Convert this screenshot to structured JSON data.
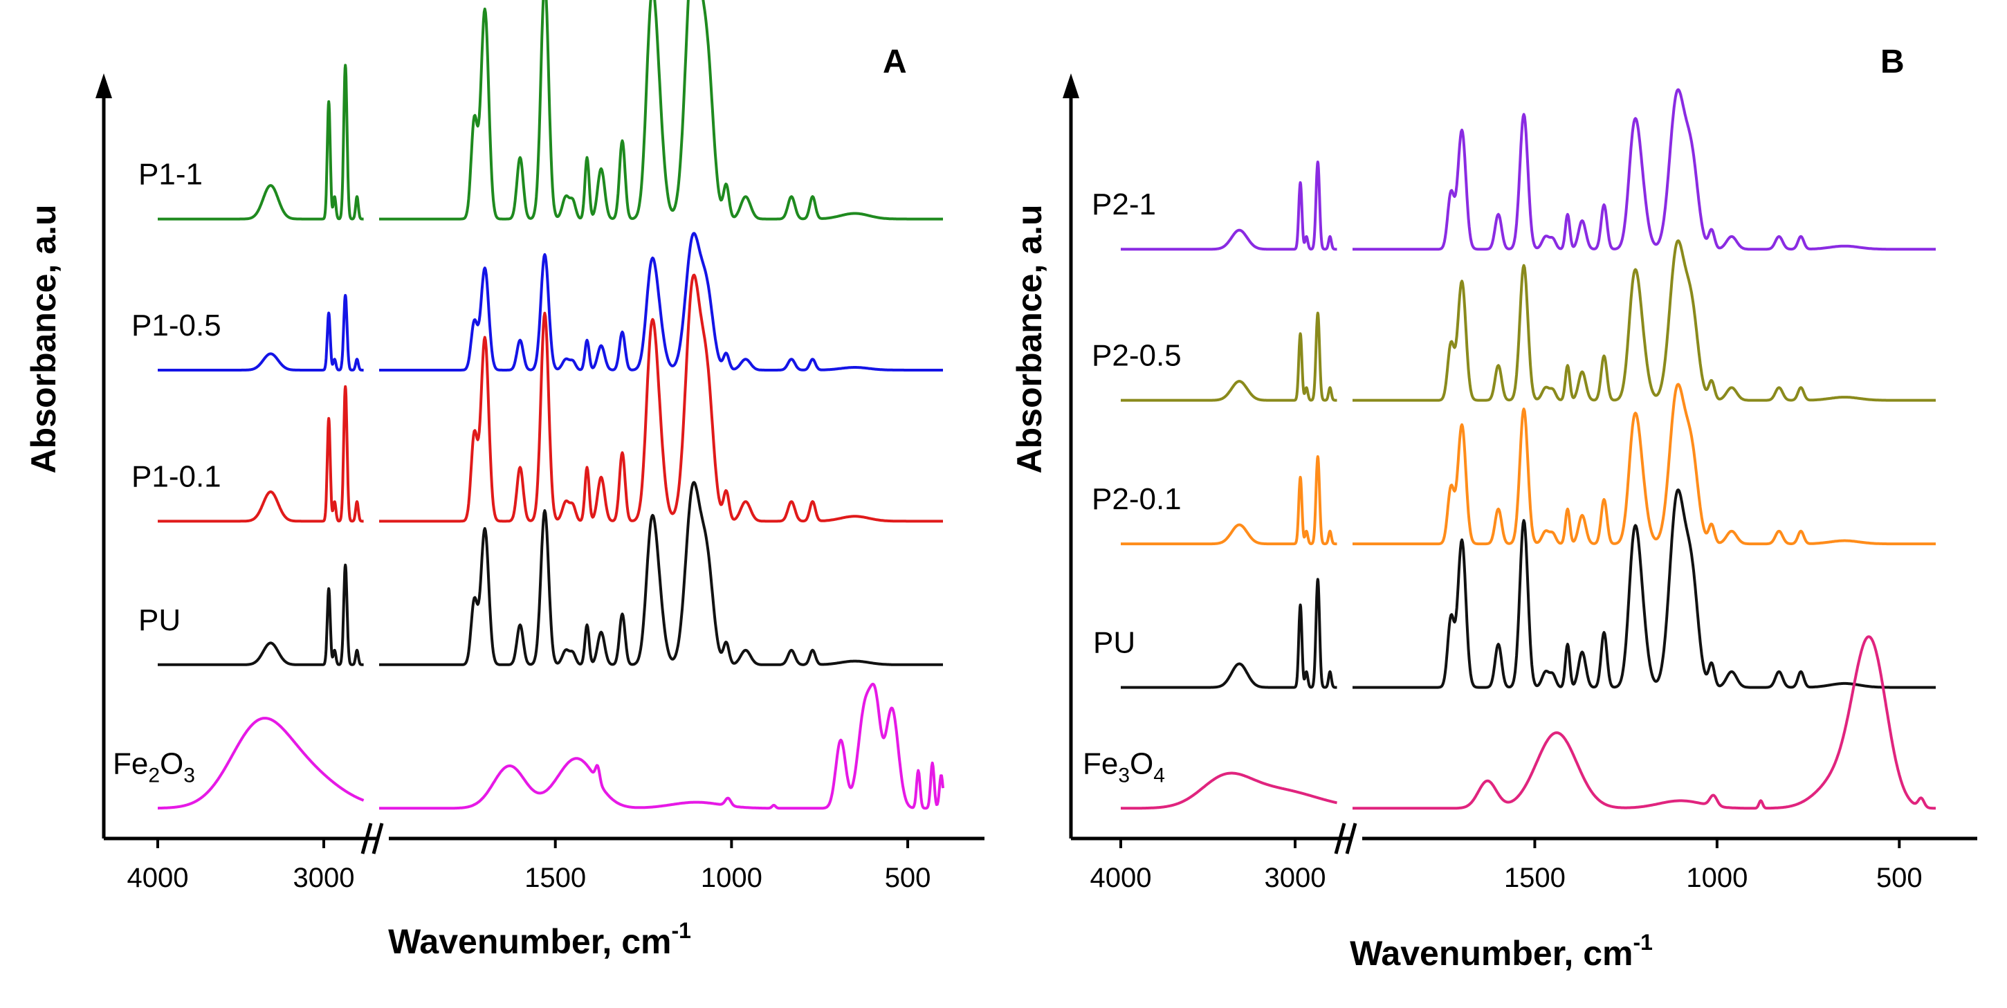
{
  "chart_data": [
    {
      "type": "line",
      "panel": "A",
      "title": "",
      "xlabel": "Wavenumber, cm",
      "xlabel_sup": "-1",
      "ylabel": "Absorbance, a.u",
      "x_axis": "reversed, broken at ~2750 cm-1 (double-slash break)",
      "tick_labels": [
        "4000",
        "3000",
        "1500",
        "1000",
        "500"
      ],
      "tick_values": [
        4000,
        3000,
        1500,
        1000,
        500
      ],
      "series": [
        {
          "name": "P1-1",
          "label_main": "P1-1",
          "label_sub": "",
          "label_tail": "",
          "color": "#1f8a1f",
          "baseline": 0.82,
          "scale": 1.85
        },
        {
          "name": "P1-0.5",
          "label_main": "P1-0.5",
          "label_sub": "",
          "label_tail": "",
          "color": "#1414e6",
          "baseline": 0.62,
          "scale": 0.9
        },
        {
          "name": "P1-0.1",
          "label_main": "P1-0.1",
          "label_sub": "",
          "label_tail": "",
          "color": "#e01a1a",
          "baseline": 0.42,
          "scale": 1.62
        },
        {
          "name": "PU",
          "label_main": "PU",
          "label_sub": "",
          "label_tail": "",
          "color": "#111111",
          "baseline": 0.23,
          "scale": 1.2
        },
        {
          "name": "Fe2O3",
          "label_main": "Fe",
          "label_sub": "2",
          "label_tail": "O",
          "label_sub2": "3",
          "color": "#e619e6",
          "baseline": 0.04,
          "scale": 1.0,
          "profile": "fe2o3"
        }
      ]
    },
    {
      "type": "line",
      "panel": "B",
      "title": "",
      "xlabel": "Wavenumber, cm",
      "xlabel_sup": "-1",
      "ylabel": "Absorbance, a.u",
      "x_axis": "reversed, broken at ~2750 cm-1 (double-slash break)",
      "tick_labels": [
        "4000",
        "3000",
        "1500",
        "1000",
        "500"
      ],
      "tick_values": [
        4000,
        3000,
        1500,
        1000,
        500
      ],
      "series": [
        {
          "name": "P2-1",
          "label_main": "P2-1",
          "label_sub": "",
          "label_tail": "",
          "color": "#8a2be2",
          "baseline": 0.78,
          "scale": 1.05
        },
        {
          "name": "P2-0.5",
          "label_main": "P2-0.5",
          "label_sub": "",
          "label_tail": "",
          "color": "#8a8a1c",
          "baseline": 0.58,
          "scale": 1.05
        },
        {
          "name": "P2-0.1",
          "label_main": "P2-0.1",
          "label_sub": "",
          "label_tail": "",
          "color": "#ff8c1a",
          "baseline": 0.39,
          "scale": 1.05
        },
        {
          "name": "PU",
          "label_main": "PU",
          "label_sub": "",
          "label_tail": "",
          "color": "#111111",
          "baseline": 0.2,
          "scale": 1.3
        },
        {
          "name": "Fe3O4",
          "label_main": "Fe",
          "label_sub": "3",
          "label_tail": "O",
          "label_sub2": "4",
          "color": "#e0247e",
          "baseline": 0.04,
          "scale": 1.0,
          "profile": "fe3o4"
        }
      ]
    }
  ]
}
